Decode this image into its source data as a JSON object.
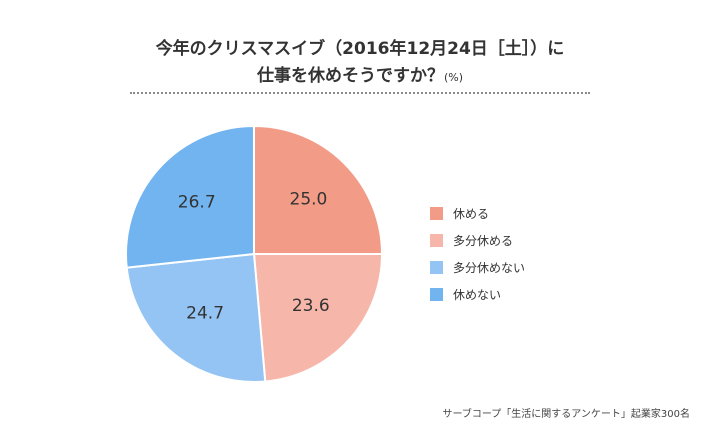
{
  "chart_data": {
    "type": "pie",
    "title_line1": "今年のクリスマスイブ（2016年12月24日［土］）に",
    "title_line2": "仕事を休めそうですか？",
    "title_unit": "(%)",
    "series": [
      {
        "name": "休める",
        "value": 25.0,
        "label": "25.0",
        "color": "#f29c87"
      },
      {
        "name": "多分休める",
        "value": 23.6,
        "label": "23.6",
        "color": "#f6b7aa"
      },
      {
        "name": "多分休めない",
        "value": 24.7,
        "label": "24.7",
        "color": "#94c4f3"
      },
      {
        "name": "休めない",
        "value": 26.7,
        "label": "26.7",
        "color": "#71b4f0"
      }
    ],
    "legend_position": "right",
    "source": "サーブコープ「生活に関するアンケート」起業家300名"
  }
}
